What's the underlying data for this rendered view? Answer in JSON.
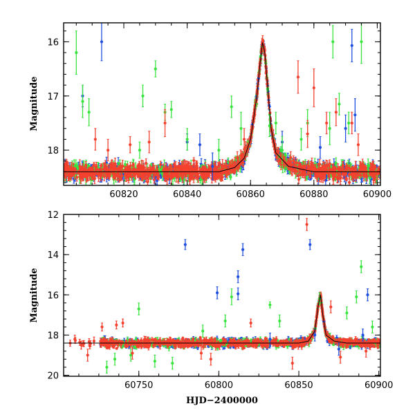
{
  "chart_data": [
    {
      "type": "scatter",
      "title": "",
      "xlabel": "",
      "ylabel": "Magnitude",
      "xlim": [
        60801,
        60901
      ],
      "ylim": [
        18.65,
        15.65
      ],
      "y_inverted": true,
      "xticks": [
        60820,
        60840,
        60860,
        60880,
        60900
      ],
      "xtick_labels": [
        "60820",
        "60840",
        "60860",
        "60880",
        "60900"
      ],
      "yticks": [
        16,
        17,
        18
      ],
      "ytick_labels": [
        "16",
        "17",
        "18"
      ],
      "grid": false,
      "legend": "none",
      "colors": {
        "blue": "#1f4fe0",
        "green": "#39e43f",
        "red": "#f5412f"
      },
      "baseline": 18.4,
      "baseline_scatter": 0.13,
      "model_curve": [
        [
          60801,
          18.4
        ],
        [
          60850,
          18.4
        ],
        [
          60855,
          18.32
        ],
        [
          60858,
          18.15
        ],
        [
          60860,
          17.8
        ],
        [
          60862,
          17.0
        ],
        [
          60863,
          16.4
        ],
        [
          60863.8,
          16.0
        ],
        [
          60864.5,
          16.2
        ],
        [
          60865.5,
          16.9
        ],
        [
          60866.5,
          17.6
        ],
        [
          60868,
          18.05
        ],
        [
          60872,
          18.3
        ],
        [
          60880,
          18.4
        ],
        [
          60901,
          18.4
        ]
      ],
      "series": [
        {
          "color": "blue",
          "outliers": [
            [
              60813,
              16.0,
              0.35
            ],
            [
              60892,
              16.07,
              0.3
            ],
            [
              60807,
              17.0,
              0.2
            ],
            [
              60840,
              17.85,
              0.15
            ],
            [
              60844,
              17.9,
              0.2
            ],
            [
              60870,
              17.85,
              0.2
            ],
            [
              60890,
              17.6,
              0.25
            ],
            [
              60893,
              17.35,
              0.3
            ],
            [
              60848,
              18.3,
              0.25
            ],
            [
              60882,
              17.95,
              0.2
            ]
          ]
        },
        {
          "color": "green",
          "outliers": [
            [
              60805,
              16.2,
              0.4
            ],
            [
              60807,
              17.1,
              0.3
            ],
            [
              60809,
              17.3,
              0.25
            ],
            [
              60830,
              16.5,
              0.15
            ],
            [
              60826,
              17.0,
              0.2
            ],
            [
              60833,
              17.3,
              0.15
            ],
            [
              60835,
              17.25,
              0.15
            ],
            [
              60840,
              17.8,
              0.2
            ],
            [
              60854,
              17.2,
              0.2
            ],
            [
              60857,
              17.6,
              0.3
            ],
            [
              60866,
              17.55,
              0.2
            ],
            [
              60868,
              17.5,
              0.2
            ],
            [
              60870,
              18.0,
              0.25
            ],
            [
              60876,
              17.8,
              0.2
            ],
            [
              60878,
              17.5,
              0.25
            ],
            [
              60885,
              17.6,
              0.3
            ],
            [
              60886,
              16.0,
              0.3
            ],
            [
              60888,
              17.15,
              0.2
            ],
            [
              60891,
              17.5,
              0.2
            ],
            [
              60895,
              16.0,
              0.4
            ],
            [
              60825,
              18.0,
              0.15
            ],
            [
              60850,
              18.0,
              0.2
            ]
          ]
        },
        {
          "color": "red",
          "outliers": [
            [
              60811,
              17.8,
              0.2
            ],
            [
              60815,
              18.0,
              0.2
            ],
            [
              60822,
              17.9,
              0.15
            ],
            [
              60828,
              17.85,
              0.2
            ],
            [
              60833,
              17.5,
              0.25
            ],
            [
              60858,
              17.8,
              0.2
            ],
            [
              60875,
              16.65,
              0.3
            ],
            [
              60878,
              17.7,
              0.25
            ],
            [
              60880,
              16.85,
              0.35
            ],
            [
              60884,
              17.5,
              0.2
            ],
            [
              60887,
              17.3,
              0.25
            ],
            [
              60892,
              17.5,
              0.2
            ],
            [
              60894,
              17.9,
              0.2
            ]
          ]
        }
      ]
    },
    {
      "type": "scatter",
      "title": "",
      "xlabel": "HJD−2400000",
      "ylabel": "Magnitude",
      "xlim": [
        60703,
        60901
      ],
      "ylim": [
        20.05,
        12.0
      ],
      "y_inverted": true,
      "xticks": [
        60750,
        60800,
        60850,
        60900
      ],
      "xtick_labels": [
        "60750",
        "60800",
        "60850",
        "60900"
      ],
      "yticks": [
        12,
        14,
        16,
        18,
        20
      ],
      "ytick_labels": [
        "12",
        "14",
        "16",
        "18",
        "20"
      ],
      "grid": false,
      "legend": "none",
      "colors": {
        "blue": "#1f4fe0",
        "green": "#39e43f",
        "red": "#f5412f"
      },
      "baseline": 18.4,
      "baseline_scatter": 0.18,
      "model_curve": [
        [
          60703,
          18.4
        ],
        [
          60850,
          18.4
        ],
        [
          60856,
          18.3
        ],
        [
          60860,
          17.8
        ],
        [
          60862,
          16.6
        ],
        [
          60863.5,
          16.0
        ],
        [
          60865,
          17.0
        ],
        [
          60867,
          18.0
        ],
        [
          60872,
          18.3
        ],
        [
          60880,
          18.4
        ],
        [
          60901,
          18.4
        ]
      ],
      "series": [
        {
          "color": "blue",
          "outliers": [
            [
              60779,
              13.5,
              0.25
            ],
            [
              60815,
              13.75,
              0.3
            ],
            [
              60857,
              13.5,
              0.25
            ],
            [
              60799,
              15.9,
              0.3
            ],
            [
              60812,
              15.1,
              0.3
            ],
            [
              60812,
              15.95,
              0.3
            ],
            [
              60893,
              16.0,
              0.3
            ],
            [
              60832,
              18.2,
              0.3
            ],
            [
              60860,
              18.0,
              0.3
            ],
            [
              60875,
              18.7,
              0.3
            ],
            [
              60890,
              18.0,
              0.3
            ]
          ]
        },
        {
          "color": "green",
          "outliers": [
            [
              60750,
              16.7,
              0.3
            ],
            [
              60808,
              16.1,
              0.4
            ],
            [
              60832,
              16.5,
              0.15
            ],
            [
              60889,
              14.6,
              0.3
            ],
            [
              60863,
              16.2,
              0.3
            ],
            [
              60880,
              16.9,
              0.3
            ],
            [
              60886,
              16.1,
              0.3
            ],
            [
              60804,
              17.3,
              0.3
            ],
            [
              60838,
              17.3,
              0.3
            ],
            [
              60735,
              19.2,
              0.3
            ],
            [
              60745,
              19.0,
              0.3
            ],
            [
              60760,
              19.3,
              0.3
            ],
            [
              60771,
              19.4,
              0.3
            ],
            [
              60730,
              19.6,
              0.3
            ],
            [
              60896,
              17.6,
              0.3
            ],
            [
              60790,
              17.8,
              0.3
            ]
          ]
        },
        {
          "color": "red",
          "outliers": [
            [
              60855,
              12.5,
              0.3
            ],
            [
              60870,
              16.6,
              0.3
            ],
            [
              60710,
              18.2,
              0.2
            ],
            [
              60714,
              18.5,
              0.2
            ],
            [
              60718,
              19.0,
              0.3
            ],
            [
              60722,
              18.3,
              0.2
            ],
            [
              60727,
              17.6,
              0.2
            ],
            [
              60736,
              17.5,
              0.2
            ],
            [
              60740,
              17.4,
              0.2
            ],
            [
              60746,
              18.9,
              0.3
            ],
            [
              60789,
              18.9,
              0.3
            ],
            [
              60795,
              19.2,
              0.3
            ],
            [
              60820,
              17.4,
              0.2
            ],
            [
              60846,
              19.4,
              0.3
            ],
            [
              60876,
              19.1,
              0.3
            ],
            [
              60892,
              18.8,
              0.3
            ]
          ]
        }
      ]
    }
  ]
}
